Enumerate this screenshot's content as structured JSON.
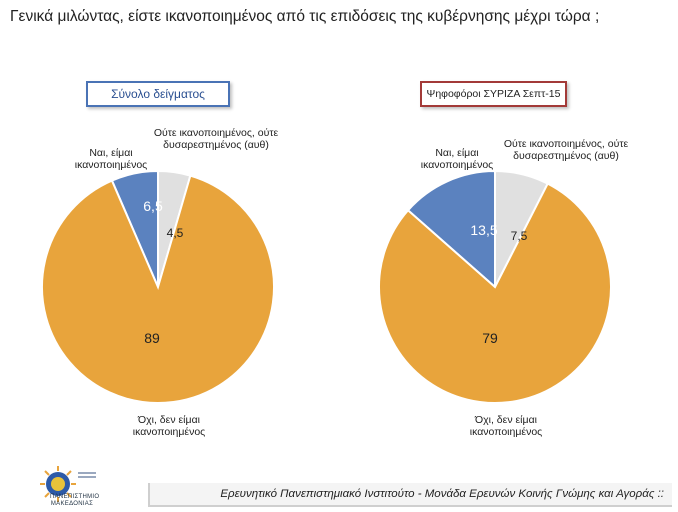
{
  "title": "Γενικά μιλώντας, είστε ικανοποιημένος από τις επιδόσεις της κυβέρνησης μέχρι τώρα ;",
  "footer": "Ερευνητικό Πανεπιστημιακό Ινστιτούτο - Μονάδα Ερευνών Κοινής Γνώμης και Αγοράς ::",
  "logo_text": "ΠΑΝΕΠΙΣΤΗΜΙΟ ΜΑΚΕΔΟΝΙΑΣ",
  "colors": {
    "yes": "#5b82bf",
    "neutral": "#e0e0e0",
    "no": "#e8a43c"
  },
  "chart_data": [
    {
      "type": "pie",
      "title": "Σύνολο δείγματος",
      "slices": [
        {
          "label": "Ναι, είμαι ικανοποιημένος",
          "value": 6.5,
          "value_label": "6,5"
        },
        {
          "label": "Ούτε ικανοποιημένος, ούτε δυσαρεστημένος (αυθ)",
          "value": 4.5,
          "value_label": "4,5"
        },
        {
          "label": "Όχι, δεν είμαι ικανοποιημένος",
          "value": 89,
          "value_label": "89"
        }
      ]
    },
    {
      "type": "pie",
      "title": "Ψηφοφόροι ΣΥΡΙΖΑ Σεπτ-15",
      "slices": [
        {
          "label": "Ναι, είμαι ικανοποιημένος",
          "value": 13.5,
          "value_label": "13,5"
        },
        {
          "label": "Ούτε ικανοποιημένος, ούτε δυσαρεστημένος (αυθ)",
          "value": 7.5,
          "value_label": "7,5"
        },
        {
          "label": "Όχι, δεν είμαι ικανοποιημένος",
          "value": 79,
          "value_label": "79"
        }
      ]
    }
  ]
}
